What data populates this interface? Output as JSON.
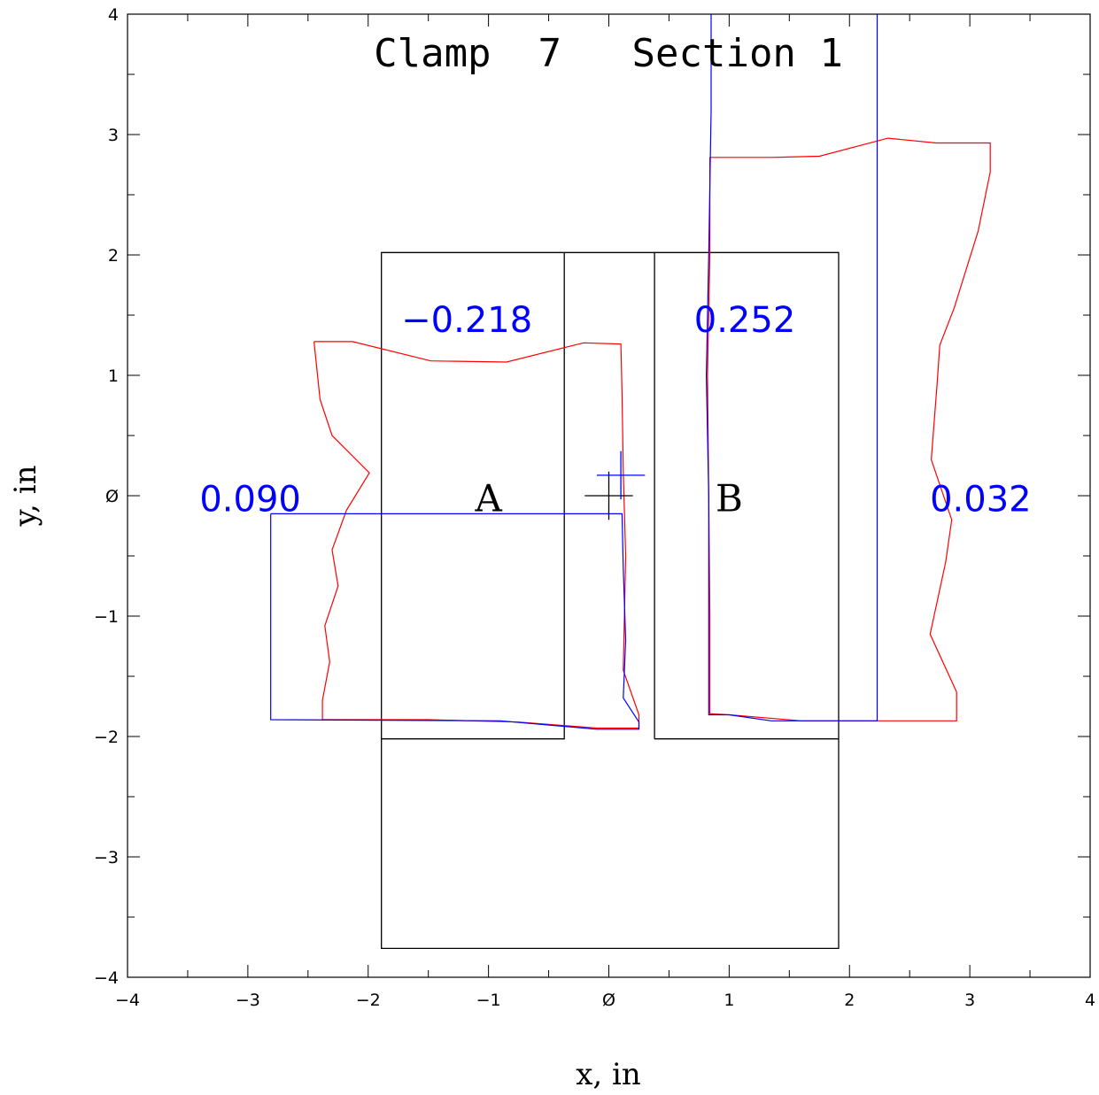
{
  "chart_data": {
    "type": "line",
    "title": "Clamp  7   Section 1",
    "xlabel": "x, in",
    "ylabel": "y, in",
    "xlim": [
      -4,
      4
    ],
    "ylim": [
      -4,
      4
    ],
    "x_ticks": [
      -4,
      -3,
      -2,
      -1,
      0,
      1,
      2,
      3,
      4
    ],
    "y_ticks": [
      -4,
      -3,
      -2,
      -1,
      0,
      1,
      2,
      3,
      4
    ],
    "x_tick_labels": [
      "−4",
      "−3",
      "−2",
      "−1",
      "Ø",
      "1",
      "2",
      "3",
      "4"
    ],
    "y_tick_labels": [
      "−4",
      "−3",
      "−2",
      "−1",
      "Ø",
      "1",
      "2",
      "3",
      "4"
    ],
    "grid": false,
    "colors": {
      "frame": "#000000",
      "red": "#ff0000",
      "blue": "#0000ff"
    },
    "outline": [
      {
        "name": "block-A",
        "points": [
          [
            -1.89,
            -2.02
          ],
          [
            -0.37,
            -2.02
          ],
          [
            -0.37,
            2.02
          ],
          [
            -1.89,
            2.02
          ],
          [
            -1.89,
            -2.02
          ]
        ]
      },
      {
        "name": "middle-gap",
        "points": [
          [
            -0.37,
            2.02
          ],
          [
            0.38,
            2.02
          ]
        ]
      },
      {
        "name": "block-B",
        "points": [
          [
            0.38,
            -2.02
          ],
          [
            1.91,
            -2.02
          ],
          [
            1.91,
            2.02
          ],
          [
            0.38,
            2.02
          ],
          [
            0.38,
            -2.02
          ]
        ]
      },
      {
        "name": "base",
        "points": [
          [
            -1.89,
            -2.02
          ],
          [
            -1.89,
            -3.76
          ],
          [
            1.91,
            -3.76
          ],
          [
            1.91,
            -2.02
          ]
        ]
      }
    ],
    "red_series": [
      {
        "name": "",
        "points": [
          [
            -2.45,
            1.28
          ],
          [
            -2.13,
            1.28
          ],
          [
            -1.48,
            1.12
          ],
          [
            -0.85,
            1.11
          ],
          [
            -0.21,
            1.27
          ],
          [
            0.1,
            1.26
          ],
          [
            0.11,
            0.85
          ],
          [
            0.12,
            0.2
          ],
          [
            0.14,
            -0.5
          ],
          [
            0.12,
            -1.45
          ],
          [
            0.25,
            -1.82
          ],
          [
            0.25,
            -1.93
          ],
          [
            -0.1,
            -1.93
          ],
          [
            -0.75,
            -1.88
          ],
          [
            -1.5,
            -1.86
          ],
          [
            -2.38,
            -1.86
          ],
          [
            -2.38,
            -1.7
          ],
          [
            -2.32,
            -1.38
          ],
          [
            -2.36,
            -1.08
          ],
          [
            -2.25,
            -0.75
          ],
          [
            -2.3,
            -0.45
          ],
          [
            -2.18,
            -0.12
          ],
          [
            -1.99,
            0.19
          ],
          [
            -2.3,
            0.5
          ],
          [
            -2.4,
            0.8
          ],
          [
            -2.45,
            1.28
          ]
        ]
      },
      {
        "name": "",
        "points": [
          [
            0.84,
            2.81
          ],
          [
            1.35,
            2.81
          ],
          [
            1.75,
            2.82
          ],
          [
            2.32,
            2.97
          ],
          [
            2.72,
            2.93
          ],
          [
            3.17,
            2.93
          ],
          [
            3.17,
            2.69
          ],
          [
            3.07,
            2.2
          ],
          [
            2.87,
            1.56
          ],
          [
            2.75,
            1.25
          ],
          [
            2.73,
            0.95
          ],
          [
            2.68,
            0.3
          ],
          [
            2.85,
            -0.2
          ],
          [
            2.8,
            -0.55
          ],
          [
            2.67,
            -1.15
          ],
          [
            2.89,
            -1.63
          ],
          [
            2.89,
            -1.87
          ],
          [
            2.2,
            -1.87
          ],
          [
            1.6,
            -1.87
          ],
          [
            1.0,
            -1.82
          ],
          [
            0.84,
            -1.81
          ],
          [
            0.84,
            -1.0
          ],
          [
            0.83,
            0.0
          ],
          [
            0.82,
            1.0
          ],
          [
            0.84,
            2.0
          ],
          [
            0.84,
            2.81
          ]
        ]
      }
    ],
    "blue_series": [
      {
        "name": "",
        "points": [
          [
            -2.81,
            -0.15
          ],
          [
            0.11,
            -0.15
          ],
          [
            0.12,
            -0.6
          ],
          [
            0.14,
            -1.2
          ],
          [
            0.12,
            -1.68
          ],
          [
            0.25,
            -1.88
          ],
          [
            0.25,
            -1.94
          ],
          [
            -0.1,
            -1.94
          ],
          [
            -0.9,
            -1.87
          ],
          [
            -2.81,
            -1.86
          ],
          [
            -2.81,
            -0.15
          ]
        ]
      },
      {
        "name": "",
        "points": [
          [
            0.85,
            4.0
          ],
          [
            0.85,
            3.2
          ],
          [
            0.83,
            2.0
          ],
          [
            0.81,
            1.0
          ],
          [
            0.83,
            0.0
          ],
          [
            0.83,
            -1.0
          ],
          [
            0.83,
            -1.82
          ],
          [
            1.0,
            -1.82
          ],
          [
            1.35,
            -1.87
          ],
          [
            2.23,
            -1.87
          ],
          [
            2.23,
            4.0
          ]
        ]
      }
    ],
    "crosshairs": [
      {
        "color": "black",
        "center": [
          0.0,
          0.0
        ],
        "half_width": 0.2,
        "half_height": 0.2
      },
      {
        "color": "blue",
        "center": [
          0.1,
          0.17
        ],
        "half_width": 0.2,
        "half_height": 0.2
      }
    ],
    "region_labels": [
      {
        "text": "A",
        "x": -1.0,
        "y": -0.02
      },
      {
        "text": "B",
        "x": 1.0,
        "y": -0.02
      }
    ],
    "value_labels": [
      {
        "text": "−0.218",
        "x": -1.18,
        "y": 1.47
      },
      {
        "text": "0.252",
        "x": 1.13,
        "y": 1.47
      },
      {
        "text": "0.090",
        "x": -2.98,
        "y": -0.02
      },
      {
        "text": "0.032",
        "x": 3.09,
        "y": -0.02
      }
    ]
  }
}
